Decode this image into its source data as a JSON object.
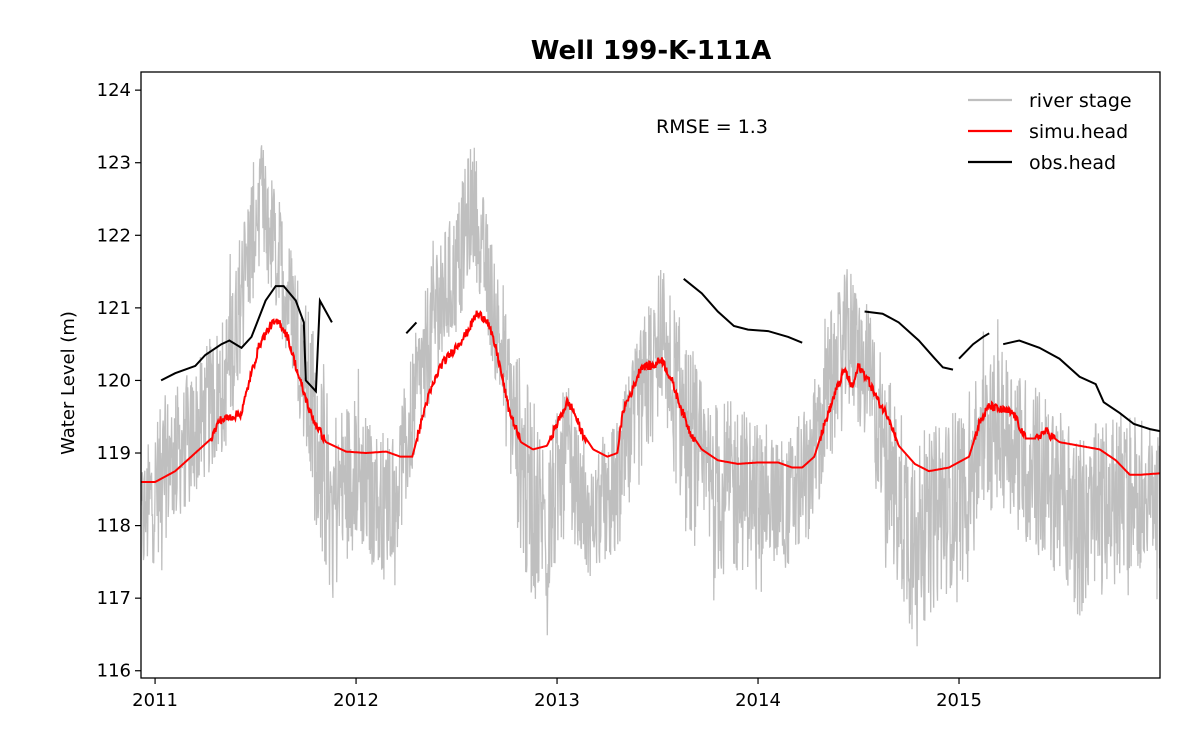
{
  "chart_data": {
    "type": "line",
    "title": "Well 199-K-111A",
    "xlabel": "",
    "ylabel": "Water Level (m)",
    "xlim": [
      2010.93,
      2016.0
    ],
    "ylim": [
      115.9,
      124.25
    ],
    "x_ticks": [
      2011,
      2012,
      2013,
      2014,
      2015
    ],
    "x_tick_labels": [
      "2011",
      "2012",
      "2013",
      "2014",
      "2015"
    ],
    "y_ticks": [
      116,
      117,
      118,
      119,
      120,
      121,
      122,
      123,
      124
    ],
    "y_tick_labels": [
      "116",
      "117",
      "118",
      "119",
      "120",
      "121",
      "122",
      "123",
      "124"
    ],
    "grid": false,
    "legend_position": "top-right",
    "annotation": "RMSE = 1.3",
    "series": [
      {
        "name": "river stage",
        "color": "#bfbfbf",
        "style": "noisy-band",
        "points": [
          {
            "x": 2010.93,
            "y": 118.0,
            "amp": 0.9
          },
          {
            "x": 2011.05,
            "y": 118.8,
            "amp": 1.0
          },
          {
            "x": 2011.2,
            "y": 119.3,
            "amp": 0.9
          },
          {
            "x": 2011.35,
            "y": 120.0,
            "amp": 1.0
          },
          {
            "x": 2011.45,
            "y": 121.5,
            "amp": 1.0
          },
          {
            "x": 2011.52,
            "y": 122.5,
            "amp": 0.9
          },
          {
            "x": 2011.6,
            "y": 121.8,
            "amp": 0.9
          },
          {
            "x": 2011.7,
            "y": 120.8,
            "amp": 0.9
          },
          {
            "x": 2011.78,
            "y": 119.5,
            "amp": 1.3
          },
          {
            "x": 2011.88,
            "y": 118.3,
            "amp": 1.4
          },
          {
            "x": 2012.0,
            "y": 118.8,
            "amp": 1.0
          },
          {
            "x": 2012.1,
            "y": 118.3,
            "amp": 1.0
          },
          {
            "x": 2012.2,
            "y": 118.5,
            "amp": 0.9
          },
          {
            "x": 2012.3,
            "y": 119.8,
            "amp": 0.9
          },
          {
            "x": 2012.4,
            "y": 121.0,
            "amp": 0.9
          },
          {
            "x": 2012.5,
            "y": 121.5,
            "amp": 0.9
          },
          {
            "x": 2012.58,
            "y": 122.5,
            "amp": 0.9
          },
          {
            "x": 2012.65,
            "y": 121.5,
            "amp": 0.8
          },
          {
            "x": 2012.75,
            "y": 120.0,
            "amp": 1.0
          },
          {
            "x": 2012.85,
            "y": 118.5,
            "amp": 1.5
          },
          {
            "x": 2012.95,
            "y": 118.0,
            "amp": 1.2
          },
          {
            "x": 2013.05,
            "y": 119.0,
            "amp": 1.0
          },
          {
            "x": 2013.15,
            "y": 118.0,
            "amp": 0.7
          },
          {
            "x": 2013.3,
            "y": 118.5,
            "amp": 1.0
          },
          {
            "x": 2013.45,
            "y": 120.0,
            "amp": 1.1
          },
          {
            "x": 2013.52,
            "y": 120.5,
            "amp": 1.1
          },
          {
            "x": 2013.62,
            "y": 119.5,
            "amp": 1.3
          },
          {
            "x": 2013.75,
            "y": 118.5,
            "amp": 1.3
          },
          {
            "x": 2013.9,
            "y": 118.5,
            "amp": 1.2
          },
          {
            "x": 2014.0,
            "y": 118.5,
            "amp": 1.0
          },
          {
            "x": 2014.15,
            "y": 118.3,
            "amp": 0.9
          },
          {
            "x": 2014.25,
            "y": 118.8,
            "amp": 1.0
          },
          {
            "x": 2014.35,
            "y": 119.8,
            "amp": 1.1
          },
          {
            "x": 2014.45,
            "y": 120.6,
            "amp": 1.0
          },
          {
            "x": 2014.55,
            "y": 120.0,
            "amp": 1.0
          },
          {
            "x": 2014.65,
            "y": 118.8,
            "amp": 1.3
          },
          {
            "x": 2014.75,
            "y": 118.0,
            "amp": 1.4
          },
          {
            "x": 2014.85,
            "y": 118.0,
            "amp": 1.3
          },
          {
            "x": 2015.0,
            "y": 118.5,
            "amp": 1.2
          },
          {
            "x": 2015.15,
            "y": 119.3,
            "amp": 1.1
          },
          {
            "x": 2015.25,
            "y": 119.3,
            "amp": 1.1
          },
          {
            "x": 2015.35,
            "y": 118.8,
            "amp": 1.2
          },
          {
            "x": 2015.5,
            "y": 118.5,
            "amp": 1.2
          },
          {
            "x": 2015.6,
            "y": 118.0,
            "amp": 1.3
          },
          {
            "x": 2015.75,
            "y": 118.3,
            "amp": 1.2
          },
          {
            "x": 2015.9,
            "y": 118.5,
            "amp": 1.1
          },
          {
            "x": 2016.0,
            "y": 118.3,
            "amp": 0.9
          }
        ]
      },
      {
        "name": "simu.head",
        "color": "#ff0000",
        "style": "line",
        "points": [
          {
            "x": 2010.93,
            "y": 118.6
          },
          {
            "x": 2011.0,
            "y": 118.6
          },
          {
            "x": 2011.1,
            "y": 118.75
          },
          {
            "x": 2011.2,
            "y": 119.0
          },
          {
            "x": 2011.28,
            "y": 119.2
          },
          {
            "x": 2011.32,
            "y": 119.45
          },
          {
            "x": 2011.38,
            "y": 119.5
          },
          {
            "x": 2011.43,
            "y": 119.55
          },
          {
            "x": 2011.47,
            "y": 120.0
          },
          {
            "x": 2011.52,
            "y": 120.5
          },
          {
            "x": 2011.58,
            "y": 120.78
          },
          {
            "x": 2011.62,
            "y": 120.8
          },
          {
            "x": 2011.66,
            "y": 120.6
          },
          {
            "x": 2011.72,
            "y": 120.0
          },
          {
            "x": 2011.78,
            "y": 119.5
          },
          {
            "x": 2011.85,
            "y": 119.15
          },
          {
            "x": 2011.95,
            "y": 119.02
          },
          {
            "x": 2012.05,
            "y": 119.0
          },
          {
            "x": 2012.15,
            "y": 119.02
          },
          {
            "x": 2012.22,
            "y": 118.95
          },
          {
            "x": 2012.28,
            "y": 118.95
          },
          {
            "x": 2012.35,
            "y": 119.7
          },
          {
            "x": 2012.42,
            "y": 120.2
          },
          {
            "x": 2012.48,
            "y": 120.4
          },
          {
            "x": 2012.55,
            "y": 120.65
          },
          {
            "x": 2012.6,
            "y": 120.92
          },
          {
            "x": 2012.65,
            "y": 120.85
          },
          {
            "x": 2012.7,
            "y": 120.4
          },
          {
            "x": 2012.76,
            "y": 119.6
          },
          {
            "x": 2012.82,
            "y": 119.15
          },
          {
            "x": 2012.88,
            "y": 119.05
          },
          {
            "x": 2012.95,
            "y": 119.1
          },
          {
            "x": 2013.0,
            "y": 119.4
          },
          {
            "x": 2013.05,
            "y": 119.7
          },
          {
            "x": 2013.08,
            "y": 119.6
          },
          {
            "x": 2013.12,
            "y": 119.3
          },
          {
            "x": 2013.18,
            "y": 119.05
          },
          {
            "x": 2013.25,
            "y": 118.95
          },
          {
            "x": 2013.3,
            "y": 119.0
          },
          {
            "x": 2013.33,
            "y": 119.6
          },
          {
            "x": 2013.38,
            "y": 119.9
          },
          {
            "x": 2013.42,
            "y": 120.2
          },
          {
            "x": 2013.48,
            "y": 120.2
          },
          {
            "x": 2013.52,
            "y": 120.3
          },
          {
            "x": 2013.57,
            "y": 120.0
          },
          {
            "x": 2013.62,
            "y": 119.6
          },
          {
            "x": 2013.66,
            "y": 119.3
          },
          {
            "x": 2013.72,
            "y": 119.05
          },
          {
            "x": 2013.8,
            "y": 118.9
          },
          {
            "x": 2013.9,
            "y": 118.85
          },
          {
            "x": 2014.0,
            "y": 118.87
          },
          {
            "x": 2014.1,
            "y": 118.87
          },
          {
            "x": 2014.17,
            "y": 118.8
          },
          {
            "x": 2014.22,
            "y": 118.8
          },
          {
            "x": 2014.28,
            "y": 118.95
          },
          {
            "x": 2014.32,
            "y": 119.3
          },
          {
            "x": 2014.38,
            "y": 119.8
          },
          {
            "x": 2014.43,
            "y": 120.15
          },
          {
            "x": 2014.47,
            "y": 119.9
          },
          {
            "x": 2014.5,
            "y": 120.2
          },
          {
            "x": 2014.55,
            "y": 120.0
          },
          {
            "x": 2014.6,
            "y": 119.7
          },
          {
            "x": 2014.65,
            "y": 119.5
          },
          {
            "x": 2014.7,
            "y": 119.1
          },
          {
            "x": 2014.78,
            "y": 118.85
          },
          {
            "x": 2014.85,
            "y": 118.75
          },
          {
            "x": 2014.95,
            "y": 118.8
          },
          {
            "x": 2015.05,
            "y": 118.95
          },
          {
            "x": 2015.1,
            "y": 119.4
          },
          {
            "x": 2015.15,
            "y": 119.65
          },
          {
            "x": 2015.2,
            "y": 119.6
          },
          {
            "x": 2015.27,
            "y": 119.55
          },
          {
            "x": 2015.33,
            "y": 119.2
          },
          {
            "x": 2015.38,
            "y": 119.2
          },
          {
            "x": 2015.43,
            "y": 119.3
          },
          {
            "x": 2015.5,
            "y": 119.15
          },
          {
            "x": 2015.6,
            "y": 119.1
          },
          {
            "x": 2015.7,
            "y": 119.05
          },
          {
            "x": 2015.78,
            "y": 118.9
          },
          {
            "x": 2015.85,
            "y": 118.7
          },
          {
            "x": 2015.9,
            "y": 118.7
          },
          {
            "x": 2016.0,
            "y": 118.72
          }
        ]
      },
      {
        "name": "obs.head",
        "color": "#000000",
        "style": "line",
        "segments": [
          [
            {
              "x": 2011.03,
              "y": 120.0
            },
            {
              "x": 2011.1,
              "y": 120.1
            },
            {
              "x": 2011.2,
              "y": 120.2
            },
            {
              "x": 2011.25,
              "y": 120.35
            },
            {
              "x": 2011.33,
              "y": 120.5
            },
            {
              "x": 2011.37,
              "y": 120.55
            },
            {
              "x": 2011.43,
              "y": 120.45
            },
            {
              "x": 2011.48,
              "y": 120.6
            },
            {
              "x": 2011.55,
              "y": 121.1
            },
            {
              "x": 2011.6,
              "y": 121.3
            },
            {
              "x": 2011.64,
              "y": 121.3
            },
            {
              "x": 2011.7,
              "y": 121.1
            },
            {
              "x": 2011.74,
              "y": 120.8
            },
            {
              "x": 2011.75,
              "y": 120.0
            },
            {
              "x": 2011.8,
              "y": 119.85
            },
            {
              "x": 2011.82,
              "y": 121.1
            },
            {
              "x": 2011.85,
              "y": 120.95
            },
            {
              "x": 2011.88,
              "y": 120.8
            }
          ],
          [
            {
              "x": 2012.25,
              "y": 120.65
            },
            {
              "x": 2012.3,
              "y": 120.8
            }
          ],
          [
            {
              "x": 2013.63,
              "y": 121.4
            },
            {
              "x": 2013.72,
              "y": 121.2
            },
            {
              "x": 2013.8,
              "y": 120.95
            },
            {
              "x": 2013.88,
              "y": 120.75
            },
            {
              "x": 2013.95,
              "y": 120.7
            },
            {
              "x": 2014.05,
              "y": 120.68
            },
            {
              "x": 2014.15,
              "y": 120.6
            },
            {
              "x": 2014.22,
              "y": 120.52
            }
          ],
          [
            {
              "x": 2014.53,
              "y": 120.95
            },
            {
              "x": 2014.62,
              "y": 120.92
            },
            {
              "x": 2014.7,
              "y": 120.8
            },
            {
              "x": 2014.8,
              "y": 120.55
            },
            {
              "x": 2014.88,
              "y": 120.3
            },
            {
              "x": 2014.92,
              "y": 120.18
            },
            {
              "x": 2014.97,
              "y": 120.15
            }
          ],
          [
            {
              "x": 2015.0,
              "y": 120.3
            },
            {
              "x": 2015.07,
              "y": 120.5
            },
            {
              "x": 2015.12,
              "y": 120.6
            },
            {
              "x": 2015.15,
              "y": 120.65
            }
          ],
          [
            {
              "x": 2015.22,
              "y": 120.5
            },
            {
              "x": 2015.3,
              "y": 120.55
            },
            {
              "x": 2015.4,
              "y": 120.45
            },
            {
              "x": 2015.5,
              "y": 120.3
            },
            {
              "x": 2015.6,
              "y": 120.05
            },
            {
              "x": 2015.68,
              "y": 119.95
            },
            {
              "x": 2015.72,
              "y": 119.7
            },
            {
              "x": 2015.8,
              "y": 119.55
            },
            {
              "x": 2015.87,
              "y": 119.4
            },
            {
              "x": 2015.95,
              "y": 119.33
            },
            {
              "x": 2016.0,
              "y": 119.3
            }
          ]
        ]
      }
    ]
  }
}
